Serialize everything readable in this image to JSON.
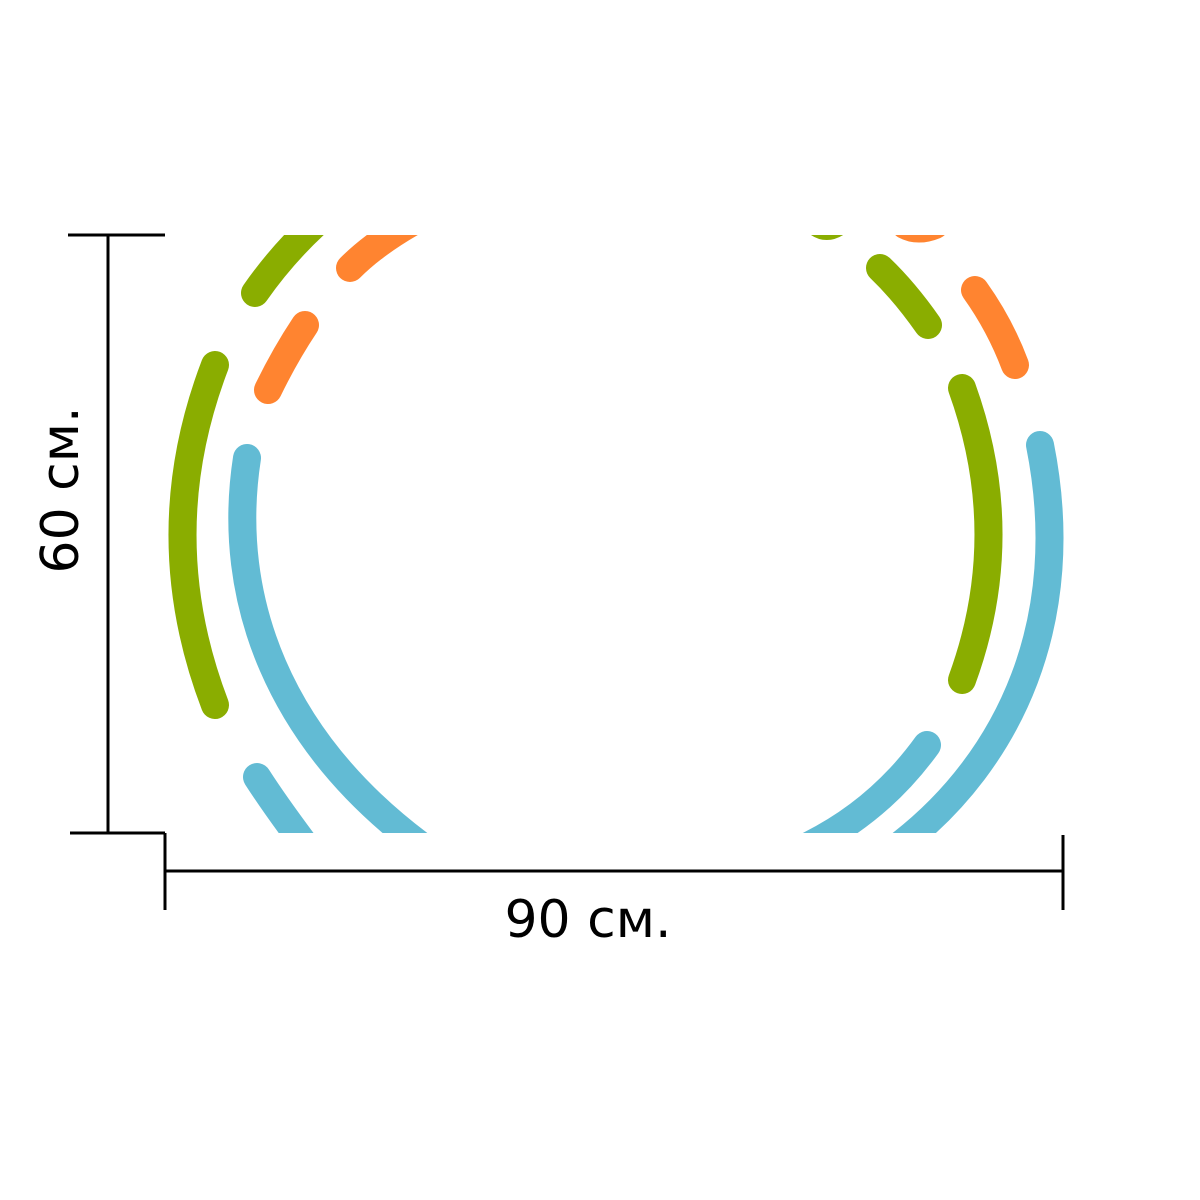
{
  "dimensions": {
    "width_label": "90 см.",
    "height_label": "60 см."
  }
}
